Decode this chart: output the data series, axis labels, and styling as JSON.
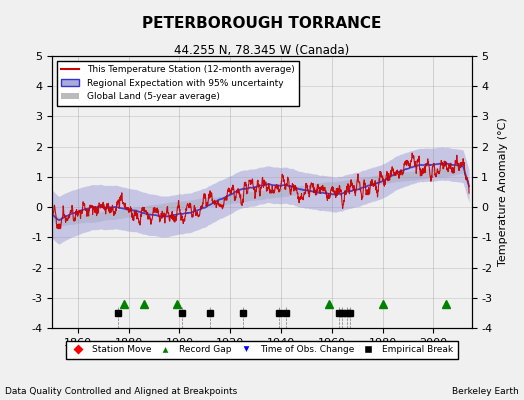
{
  "title": "PETERBOROUGH TORRANCE",
  "subtitle": "44.255 N, 78.345 W (Canada)",
  "xlabel_years": [
    1860,
    1880,
    1900,
    1920,
    1940,
    1960,
    1980,
    2000
  ],
  "ylim": [
    -4,
    5
  ],
  "yticks": [
    -4,
    -3,
    -2,
    -1,
    0,
    1,
    2,
    3,
    4,
    5
  ],
  "year_start": 1850,
  "year_end": 2014,
  "ylabel": "Temperature Anomaly (°C)",
  "legend_entries": [
    "This Temperature Station (12-month average)",
    "Regional Expectation with 95% uncertainty",
    "Global Land (5-year average)"
  ],
  "footer_left": "Data Quality Controlled and Aligned at Breakpoints",
  "footer_right": "Berkeley Earth",
  "bg_color": "#f0f0f0",
  "plot_bg_color": "#f0f0f0",
  "station_color": "#cc0000",
  "regional_color": "#3333cc",
  "regional_fill_color": "#aaaadd",
  "global_color": "#bbbbbb",
  "marker_events": {
    "record_gaps": [
      1878,
      1886,
      1899,
      1959,
      1980,
      2005
    ],
    "empirical_breaks": [
      1876,
      1901,
      1912,
      1925,
      1939,
      1942,
      1963,
      1964,
      1966,
      1967
    ]
  }
}
